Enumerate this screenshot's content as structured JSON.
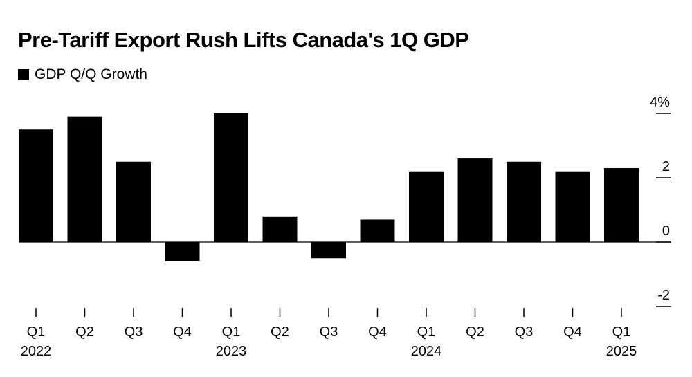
{
  "chart_data": {
    "type": "bar",
    "title": "Pre-Tariff Export Rush Lifts Canada's 1Q GDP",
    "legend": [
      "GDP Q/Q Growth"
    ],
    "categories": [
      "Q1",
      "Q2",
      "Q3",
      "Q4",
      "Q1",
      "Q2",
      "Q3",
      "Q4",
      "Q1",
      "Q2",
      "Q3",
      "Q4",
      "Q1"
    ],
    "year_labels": [
      "2022",
      "",
      "",
      "",
      "2023",
      "",
      "",
      "",
      "2024",
      "",
      "",
      "",
      "2025"
    ],
    "series": [
      {
        "name": "GDP Q/Q Growth",
        "values": [
          3.5,
          3.9,
          2.5,
          -0.6,
          4.0,
          0.8,
          -0.5,
          0.7,
          2.2,
          2.6,
          2.5,
          2.2,
          2.3
        ]
      }
    ],
    "ylim": [
      -2,
      4
    ],
    "yticks": [
      4,
      2,
      0,
      -2
    ],
    "ytick_labels": [
      "4%",
      "2",
      "0",
      "-2"
    ],
    "colors": {
      "bar": "#000000"
    }
  }
}
